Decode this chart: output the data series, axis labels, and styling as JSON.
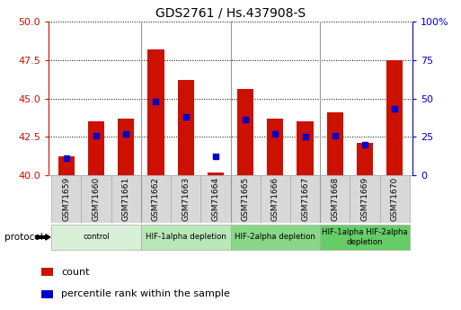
{
  "title": "GDS2761 / Hs.437908-S",
  "samples": [
    "GSM71659",
    "GSM71660",
    "GSM71661",
    "GSM71662",
    "GSM71663",
    "GSM71664",
    "GSM71665",
    "GSM71666",
    "GSM71667",
    "GSM71668",
    "GSM71669",
    "GSM71670"
  ],
  "count_values": [
    41.2,
    43.5,
    43.7,
    48.2,
    46.2,
    40.2,
    45.6,
    43.7,
    43.5,
    44.1,
    42.1,
    47.5
  ],
  "percentile_values": [
    41.1,
    42.6,
    42.7,
    44.8,
    43.8,
    41.2,
    43.6,
    42.7,
    42.5,
    42.6,
    42.0,
    44.3
  ],
  "ylim_left": [
    40,
    50
  ],
  "yticks_left": [
    40,
    42.5,
    45,
    47.5,
    50
  ],
  "ylim_right": [
    0,
    100
  ],
  "yticks_right": [
    0,
    25,
    50,
    75,
    100
  ],
  "ytick_labels_right": [
    "0",
    "25",
    "50",
    "75",
    "100%"
  ],
  "bar_color": "#cc1100",
  "percentile_color": "#0000cc",
  "grid_color": "#000000",
  "protocol_groups": [
    {
      "label": "control",
      "start": 0,
      "end": 2,
      "color": "#d8f0d8"
    },
    {
      "label": "HIF-1alpha depletion",
      "start": 3,
      "end": 5,
      "color": "#b8e8b8"
    },
    {
      "label": "HIF-2alpha depletion",
      "start": 6,
      "end": 8,
      "color": "#88d888"
    },
    {
      "label": "HIF-1alpha HIF-2alpha\ndepletion",
      "start": 9,
      "end": 11,
      "color": "#66cc66"
    }
  ],
  "xlabel_color": "#cc1100",
  "ylabel_right_color": "#0000cc",
  "bar_width": 0.55,
  "base_value": 40,
  "legend_items": [
    {
      "label": "count",
      "color": "#cc1100"
    },
    {
      "label": "percentile rank within the sample",
      "color": "#0000cc"
    }
  ],
  "group_dividers": [
    2.5,
    5.5,
    8.5
  ],
  "tick_bg_color": "#d8d8d8"
}
